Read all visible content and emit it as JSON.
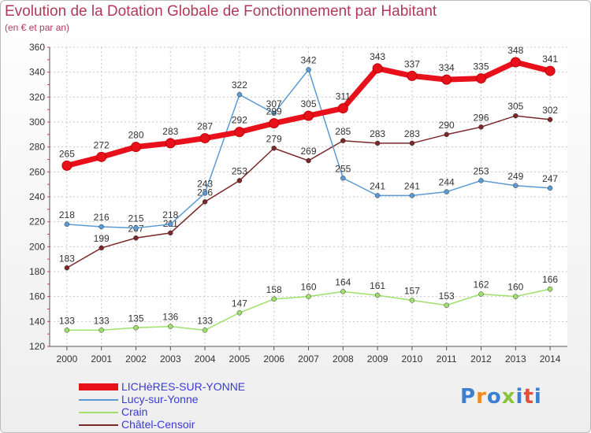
{
  "chart_data": {
    "type": "line",
    "title": "Evolution de la Dotation Globale de Fonctionnement par Habitant",
    "subtitle": "(en € et par an)",
    "xlabel": "",
    "ylabel": "",
    "ylim": [
      120,
      360
    ],
    "yticks": [
      120,
      140,
      160,
      180,
      200,
      220,
      240,
      260,
      280,
      300,
      320,
      340,
      360
    ],
    "categories": [
      "2000",
      "2001",
      "2002",
      "2003",
      "2004",
      "2005",
      "2006",
      "2007",
      "2008",
      "2009",
      "2010",
      "2011",
      "2012",
      "2013",
      "2014"
    ],
    "series": [
      {
        "name": "LICHèRES-SUR-YONNE",
        "color": "#e8101a",
        "bold": true,
        "values": [
          265,
          272,
          280,
          283,
          287,
          292,
          299,
          305,
          311,
          343,
          337,
          334,
          335,
          348,
          341
        ]
      },
      {
        "name": "Lucy-sur-Yonne",
        "color": "#5b9bd5",
        "bold": false,
        "values": [
          218,
          216,
          215,
          218,
          243,
          322,
          307,
          342,
          255,
          241,
          241,
          244,
          253,
          249,
          247
        ]
      },
      {
        "name": "Crain",
        "color": "#9ee06b",
        "bold": false,
        "values": [
          133,
          133,
          135,
          136,
          133,
          147,
          158,
          160,
          164,
          161,
          157,
          153,
          162,
          160,
          166
        ]
      },
      {
        "name": "Châtel-Censoir",
        "color": "#7a2828",
        "bold": false,
        "values": [
          183,
          199,
          207,
          211,
          236,
          253,
          279,
          269,
          285,
          283,
          283,
          290,
          296,
          305,
          302
        ]
      }
    ]
  },
  "logo": {
    "text": "Proxiti",
    "colors": [
      "#3a7fd0",
      "#f08a1c",
      "#3a7fd0",
      "#8ac43a",
      "#3a7fd0",
      "#e84c3a",
      "#3a7fd0"
    ]
  }
}
